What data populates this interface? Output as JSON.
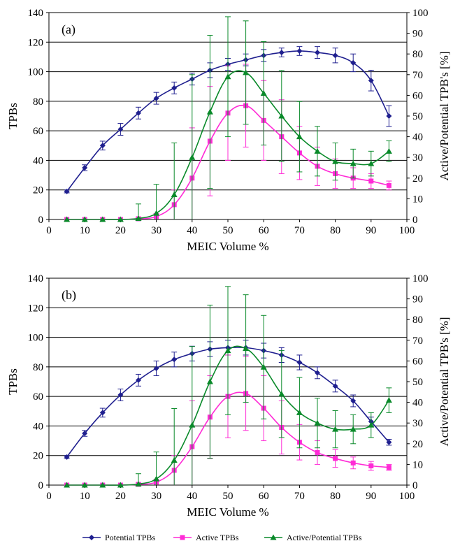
{
  "chart_data": [
    {
      "type": "line",
      "panel_label": "(a)",
      "xlabel": "MEIC Volume %",
      "ylabel": "TPBs",
      "ylabel_right": "Active/Potential TPB's [%]",
      "xlim": [
        0,
        100
      ],
      "ylim": [
        0,
        140
      ],
      "ylim_right": [
        0,
        100
      ],
      "x_ticks": [
        0,
        10,
        20,
        30,
        40,
        50,
        60,
        70,
        80,
        90,
        100
      ],
      "y_ticks": [
        0,
        20,
        40,
        60,
        80,
        100,
        120,
        140
      ],
      "y_ticks_right": [
        0,
        10,
        20,
        30,
        40,
        50,
        60,
        70,
        80,
        90,
        100
      ],
      "grid": "horizontal",
      "x": [
        5,
        10,
        15,
        20,
        25,
        30,
        35,
        40,
        45,
        50,
        55,
        60,
        65,
        70,
        75,
        80,
        85,
        90,
        95
      ],
      "series": [
        {
          "name": "Potential TPBs",
          "axis": "left",
          "marker": "diamond",
          "color": "#1f1f8f",
          "values": [
            19,
            35,
            50,
            61,
            72,
            82,
            89,
            95,
            101,
            105,
            108,
            111,
            113,
            114,
            113,
            111,
            106,
            94,
            70
          ],
          "errors": [
            1,
            2,
            3,
            4,
            4,
            4,
            4,
            4,
            5,
            4,
            4,
            4,
            3,
            3,
            4,
            5,
            6,
            7,
            7
          ]
        },
        {
          "name": "Active TPBs",
          "axis": "left",
          "marker": "square",
          "color": "#ff2bd6",
          "values": [
            0,
            0,
            0,
            0,
            0.5,
            2,
            10,
            28,
            53,
            72,
            77,
            67,
            56,
            45,
            36,
            31,
            28,
            26,
            23
          ],
          "errors": [
            0,
            0,
            0,
            0,
            1,
            2,
            10,
            34,
            37,
            32,
            28,
            27,
            25,
            18,
            13,
            10,
            7,
            5,
            3
          ]
        },
        {
          "name": "Active/Potential TPBs",
          "axis": "right",
          "marker": "triangle",
          "color": "#0a8a2a",
          "values": [
            0,
            0,
            0,
            0,
            0.5,
            3,
            12,
            30,
            52,
            69,
            71,
            61,
            50,
            40,
            33,
            28,
            27,
            27,
            33
          ],
          "errors": [
            0,
            0,
            0,
            0,
            7,
            14,
            25,
            40,
            37,
            29,
            25,
            25,
            22,
            17,
            12,
            9,
            7,
            6,
            5
          ]
        }
      ]
    },
    {
      "type": "line",
      "panel_label": "(b)",
      "xlabel": "MEIC Volume %",
      "ylabel": "TPBs",
      "ylabel_right": "Active/Potential TPB's [%]",
      "xlim": [
        0,
        100
      ],
      "ylim": [
        0,
        140
      ],
      "ylim_right": [
        0,
        100
      ],
      "x_ticks": [
        0,
        10,
        20,
        30,
        40,
        50,
        60,
        70,
        80,
        90,
        100
      ],
      "y_ticks": [
        0,
        20,
        40,
        60,
        80,
        100,
        120,
        140
      ],
      "y_ticks_right": [
        0,
        10,
        20,
        30,
        40,
        50,
        60,
        70,
        80,
        90,
        100
      ],
      "grid": "horizontal",
      "x": [
        5,
        10,
        15,
        20,
        25,
        30,
        35,
        40,
        45,
        50,
        55,
        60,
        65,
        70,
        75,
        80,
        85,
        90,
        95
      ],
      "series": [
        {
          "name": "Potential TPBs",
          "axis": "left",
          "marker": "diamond",
          "color": "#1f1f8f",
          "values": [
            19,
            35,
            49,
            61,
            71,
            79,
            85,
            89,
            92,
            93,
            93,
            91,
            88,
            83,
            76,
            67,
            57,
            43,
            29
          ],
          "errors": [
            1,
            2,
            3,
            4,
            4,
            5,
            5,
            5,
            5,
            5,
            5,
            5,
            5,
            5,
            4,
            4,
            4,
            3,
            2
          ]
        },
        {
          "name": "Active TPBs",
          "axis": "left",
          "marker": "square",
          "color": "#ff2bd6",
          "values": [
            0,
            0,
            0,
            0,
            0.5,
            2,
            10,
            26,
            46,
            60,
            62,
            52,
            39,
            29,
            22,
            18,
            15,
            13,
            12
          ],
          "errors": [
            0,
            0,
            0,
            0,
            1,
            2,
            10,
            31,
            28,
            28,
            25,
            22,
            18,
            12,
            8,
            6,
            4,
            3,
            2
          ]
        },
        {
          "name": "Active/Potential TPBs",
          "axis": "right",
          "marker": "triangle",
          "color": "#0a8a2a",
          "values": [
            0,
            0,
            0,
            0,
            0.5,
            3,
            12,
            29,
            50,
            65,
            66,
            57,
            44,
            35,
            30,
            27,
            27,
            29,
            41
          ],
          "errors": [
            0,
            0,
            0,
            0,
            5,
            13,
            25,
            38,
            37,
            31,
            26,
            25,
            21,
            17,
            12,
            9,
            7,
            6,
            6
          ]
        }
      ]
    }
  ],
  "legend": {
    "placement": "bottom-center",
    "entries": [
      "Potential TPBs",
      "Active TPBs",
      "Active/Potential TPBs"
    ]
  }
}
